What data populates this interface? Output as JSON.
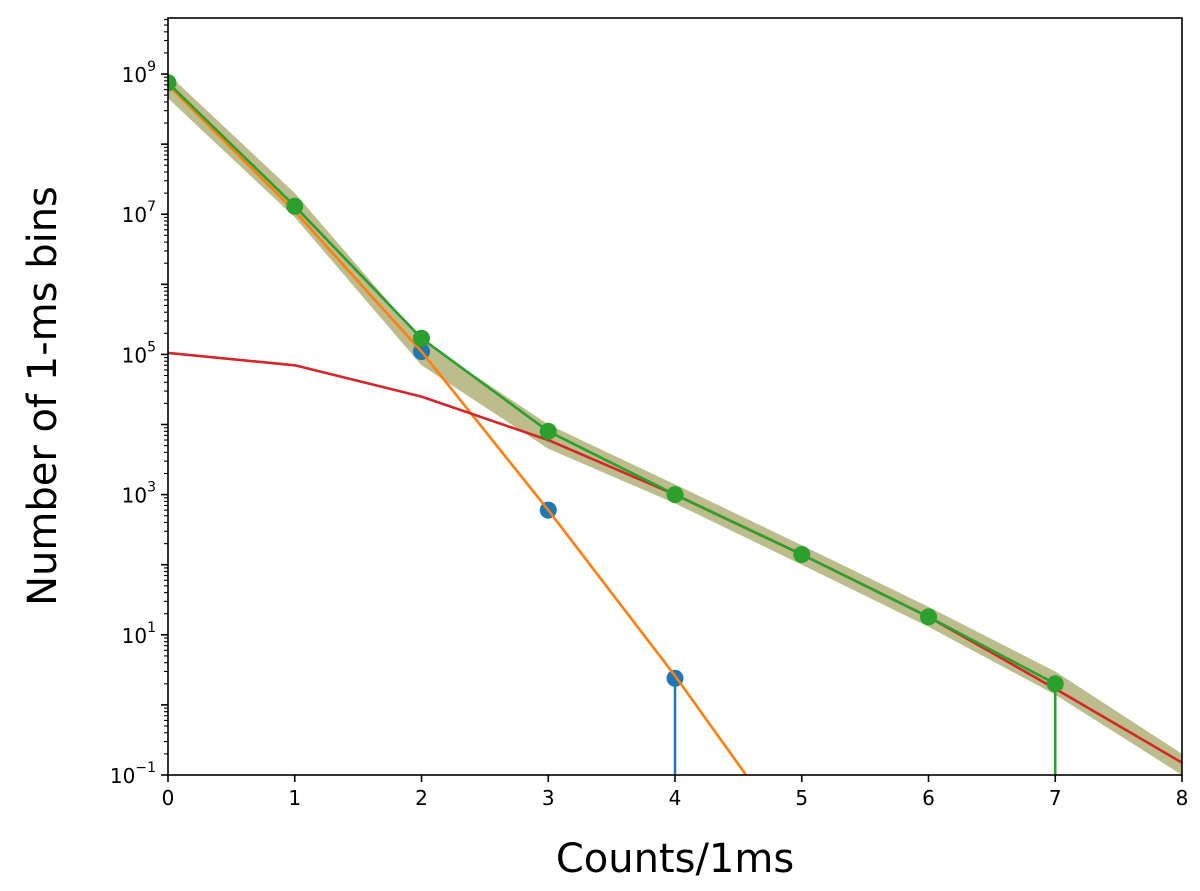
{
  "chart_data": {
    "type": "line",
    "title": "",
    "xlabel": "Counts/1ms",
    "ylabel": "Number of 1-ms bins",
    "xlim": [
      0,
      8
    ],
    "ylim": [
      0.1,
      6300000000.0
    ],
    "yscale": "log",
    "grid": false,
    "legend": "none",
    "x_ticks": [
      0,
      1,
      2,
      3,
      4,
      5,
      6,
      7,
      8
    ],
    "x_tick_labels": [
      "0",
      "1",
      "2",
      "3",
      "4",
      "5",
      "6",
      "7",
      "8"
    ],
    "y_ticks": [
      {
        "value": 1000000000,
        "base": "10",
        "exp": "9"
      },
      {
        "value": 10000000,
        "base": "10",
        "exp": "7"
      },
      {
        "value": 100000,
        "base": "10",
        "exp": "5"
      },
      {
        "value": 1000,
        "base": "10",
        "exp": "3"
      },
      {
        "value": 10,
        "base": "10",
        "exp": "1"
      },
      {
        "value": 0.1,
        "base": "10",
        "exp": "−1"
      }
    ],
    "band": {
      "color": "#7a7a1a",
      "opacity": 0.5,
      "x": [
        0,
        1,
        2,
        3,
        4,
        5,
        6,
        7,
        8
      ],
      "lower": [
        450000000,
        9000000,
        70000,
        4500,
        750,
        100,
        13,
        1.4,
        0.1
      ],
      "upper": [
        1000000000,
        20000000,
        160000,
        10000,
        1400,
        190,
        25,
        3.0,
        0.2
      ]
    },
    "series": [
      {
        "color": "#1f77b4",
        "style": "markers",
        "x": [
          2,
          3,
          4
        ],
        "y": [
          110000,
          600,
          2.4
        ],
        "drop_to_axis_at": [
          4
        ]
      },
      {
        "color": "#ff7f0e",
        "style": "line",
        "x": [
          0,
          1,
          2,
          3,
          4,
          4.56
        ],
        "y": [
          700000000,
          11000000,
          110000,
          600,
          2.6,
          0.1
        ]
      },
      {
        "color": "#d62728",
        "style": "line",
        "x": [
          0,
          1,
          2,
          3,
          4,
          5,
          6,
          7,
          8
        ],
        "y": [
          105000,
          70000,
          25000,
          6000,
          1000,
          140,
          18,
          1.7,
          0.15
        ]
      },
      {
        "color": "#2ca02c",
        "style": "line+markers",
        "x": [
          0,
          1,
          2,
          3,
          4,
          5,
          6,
          7
        ],
        "y": [
          750000000,
          13000000,
          170000,
          8000,
          1000,
          140,
          18,
          2.0
        ],
        "drop_to_axis_at": [
          7
        ]
      }
    ]
  }
}
